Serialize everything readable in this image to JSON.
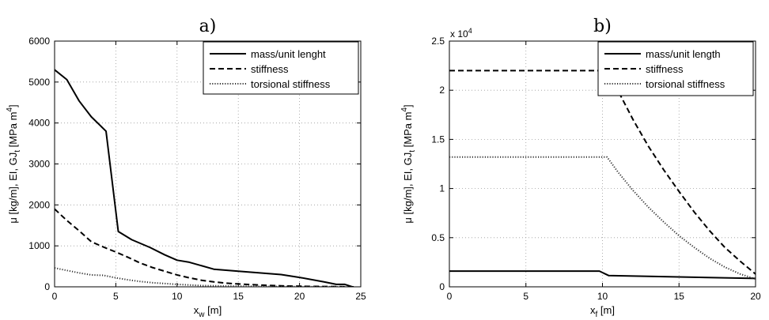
{
  "chart_data": [
    {
      "type": "line",
      "title": "a)",
      "xlabel": "x",
      "xlabel_sub": "w",
      "xlabel_unit": " [m]",
      "ylabel": "μ [kg/m], EI, GJ",
      "ylabel_sub": "t",
      "ylabel_unit": " [MPa m",
      "ylabel_sup": "4",
      "ylabel_close": "]",
      "xlim": [
        0,
        25
      ],
      "ylim": [
        0,
        6000
      ],
      "xticks": [
        0,
        5,
        10,
        15,
        20,
        25
      ],
      "yticks": [
        0,
        1000,
        2000,
        3000,
        4000,
        5000,
        6000
      ],
      "xtick_labels": [
        "0",
        "5",
        "10",
        "15",
        "20",
        "25"
      ],
      "ytick_labels": [
        "0",
        "1000",
        "2000",
        "3000",
        "4000",
        "5000",
        "6000"
      ],
      "y_multiplier": "",
      "grid": true,
      "legend_position": "top-right",
      "series": [
        {
          "name": "mass/unit lenght",
          "style": "solid",
          "points": [
            [
              0,
              5300
            ],
            [
              1,
              5060
            ],
            [
              2,
              4540
            ],
            [
              3,
              4150
            ],
            [
              4.2,
              3800
            ],
            [
              5.2,
              1350
            ],
            [
              6.3,
              1150
            ],
            [
              7.8,
              960
            ],
            [
              9,
              780
            ],
            [
              10,
              650
            ],
            [
              11,
              600
            ],
            [
              13,
              430
            ],
            [
              15,
              380
            ],
            [
              18.5,
              300
            ],
            [
              20,
              230
            ],
            [
              22,
              120
            ],
            [
              23,
              60
            ],
            [
              23.7,
              60
            ],
            [
              24.3,
              0
            ]
          ]
        },
        {
          "name": "stiffness",
          "style": "dashed",
          "points": [
            [
              0,
              1900
            ],
            [
              1,
              1620
            ],
            [
              2,
              1370
            ],
            [
              3,
              1100
            ],
            [
              4,
              970
            ],
            [
              5,
              850
            ],
            [
              6,
              720
            ],
            [
              7,
              580
            ],
            [
              8,
              470
            ],
            [
              9,
              380
            ],
            [
              10,
              290
            ],
            [
              11,
              220
            ],
            [
              12,
              160
            ],
            [
              13,
              120
            ],
            [
              14,
              90
            ],
            [
              15,
              70
            ],
            [
              17,
              40
            ],
            [
              19,
              20
            ],
            [
              21,
              10
            ],
            [
              23,
              5
            ],
            [
              24.5,
              0
            ]
          ]
        },
        {
          "name": "torsional stiffness",
          "style": "dotted",
          "points": [
            [
              0,
              460
            ],
            [
              1,
              400
            ],
            [
              2,
              340
            ],
            [
              3,
              290
            ],
            [
              4,
              280
            ],
            [
              5,
              220
            ],
            [
              6,
              170
            ],
            [
              7,
              130
            ],
            [
              8,
              100
            ],
            [
              9,
              80
            ],
            [
              10,
              60
            ],
            [
              11,
              45
            ],
            [
              12,
              30
            ],
            [
              14,
              20
            ],
            [
              16,
              12
            ],
            [
              18,
              8
            ],
            [
              20,
              5
            ],
            [
              22,
              2
            ],
            [
              24,
              0
            ]
          ]
        }
      ]
    },
    {
      "type": "line",
      "title": "b)",
      "xlabel": "x",
      "xlabel_sub": "f",
      "xlabel_unit": " [m]",
      "ylabel": "μ [kg/m], EI, GJ",
      "ylabel_sub": "t",
      "ylabel_unit": " [MPa m",
      "ylabel_sup": "4",
      "ylabel_close": "]",
      "xlim": [
        0,
        20
      ],
      "ylim": [
        0,
        25000
      ],
      "xticks": [
        0,
        5,
        10,
        15,
        20
      ],
      "yticks": [
        0,
        5000,
        10000,
        15000,
        20000,
        25000
      ],
      "xtick_labels": [
        "0",
        "5",
        "10",
        "15",
        "20"
      ],
      "ytick_labels": [
        "0",
        "0.5",
        "1",
        "1.5",
        "2",
        "2.5"
      ],
      "y_multiplier": "x 10",
      "y_multiplier_sup": "4",
      "grid": true,
      "legend_position": "top-right",
      "series": [
        {
          "name": "mass/unit length",
          "style": "solid",
          "points": [
            [
              0,
              1600
            ],
            [
              9.8,
              1600
            ],
            [
              10.4,
              1150
            ],
            [
              15,
              1000
            ],
            [
              20,
              850
            ]
          ]
        },
        {
          "name": "stiffness",
          "style": "dashed",
          "points": [
            [
              0,
              22000
            ],
            [
              10.3,
              22000
            ],
            [
              11,
              20000
            ],
            [
              12,
              17000
            ],
            [
              13,
              14300
            ],
            [
              14,
              11900
            ],
            [
              15,
              9700
            ],
            [
              16,
              7600
            ],
            [
              17,
              5700
            ],
            [
              18,
              4000
            ],
            [
              19,
              2600
            ],
            [
              20,
              1300
            ]
          ]
        },
        {
          "name": "torsional stiffness",
          "style": "dotted",
          "points": [
            [
              0,
              13200
            ],
            [
              10.3,
              13200
            ],
            [
              11,
              11700
            ],
            [
              12,
              9800
            ],
            [
              13,
              8100
            ],
            [
              14,
              6600
            ],
            [
              15,
              5200
            ],
            [
              16,
              4000
            ],
            [
              17,
              2900
            ],
            [
              18,
              2000
            ],
            [
              19,
              1300
            ],
            [
              20,
              800
            ]
          ]
        }
      ]
    }
  ]
}
